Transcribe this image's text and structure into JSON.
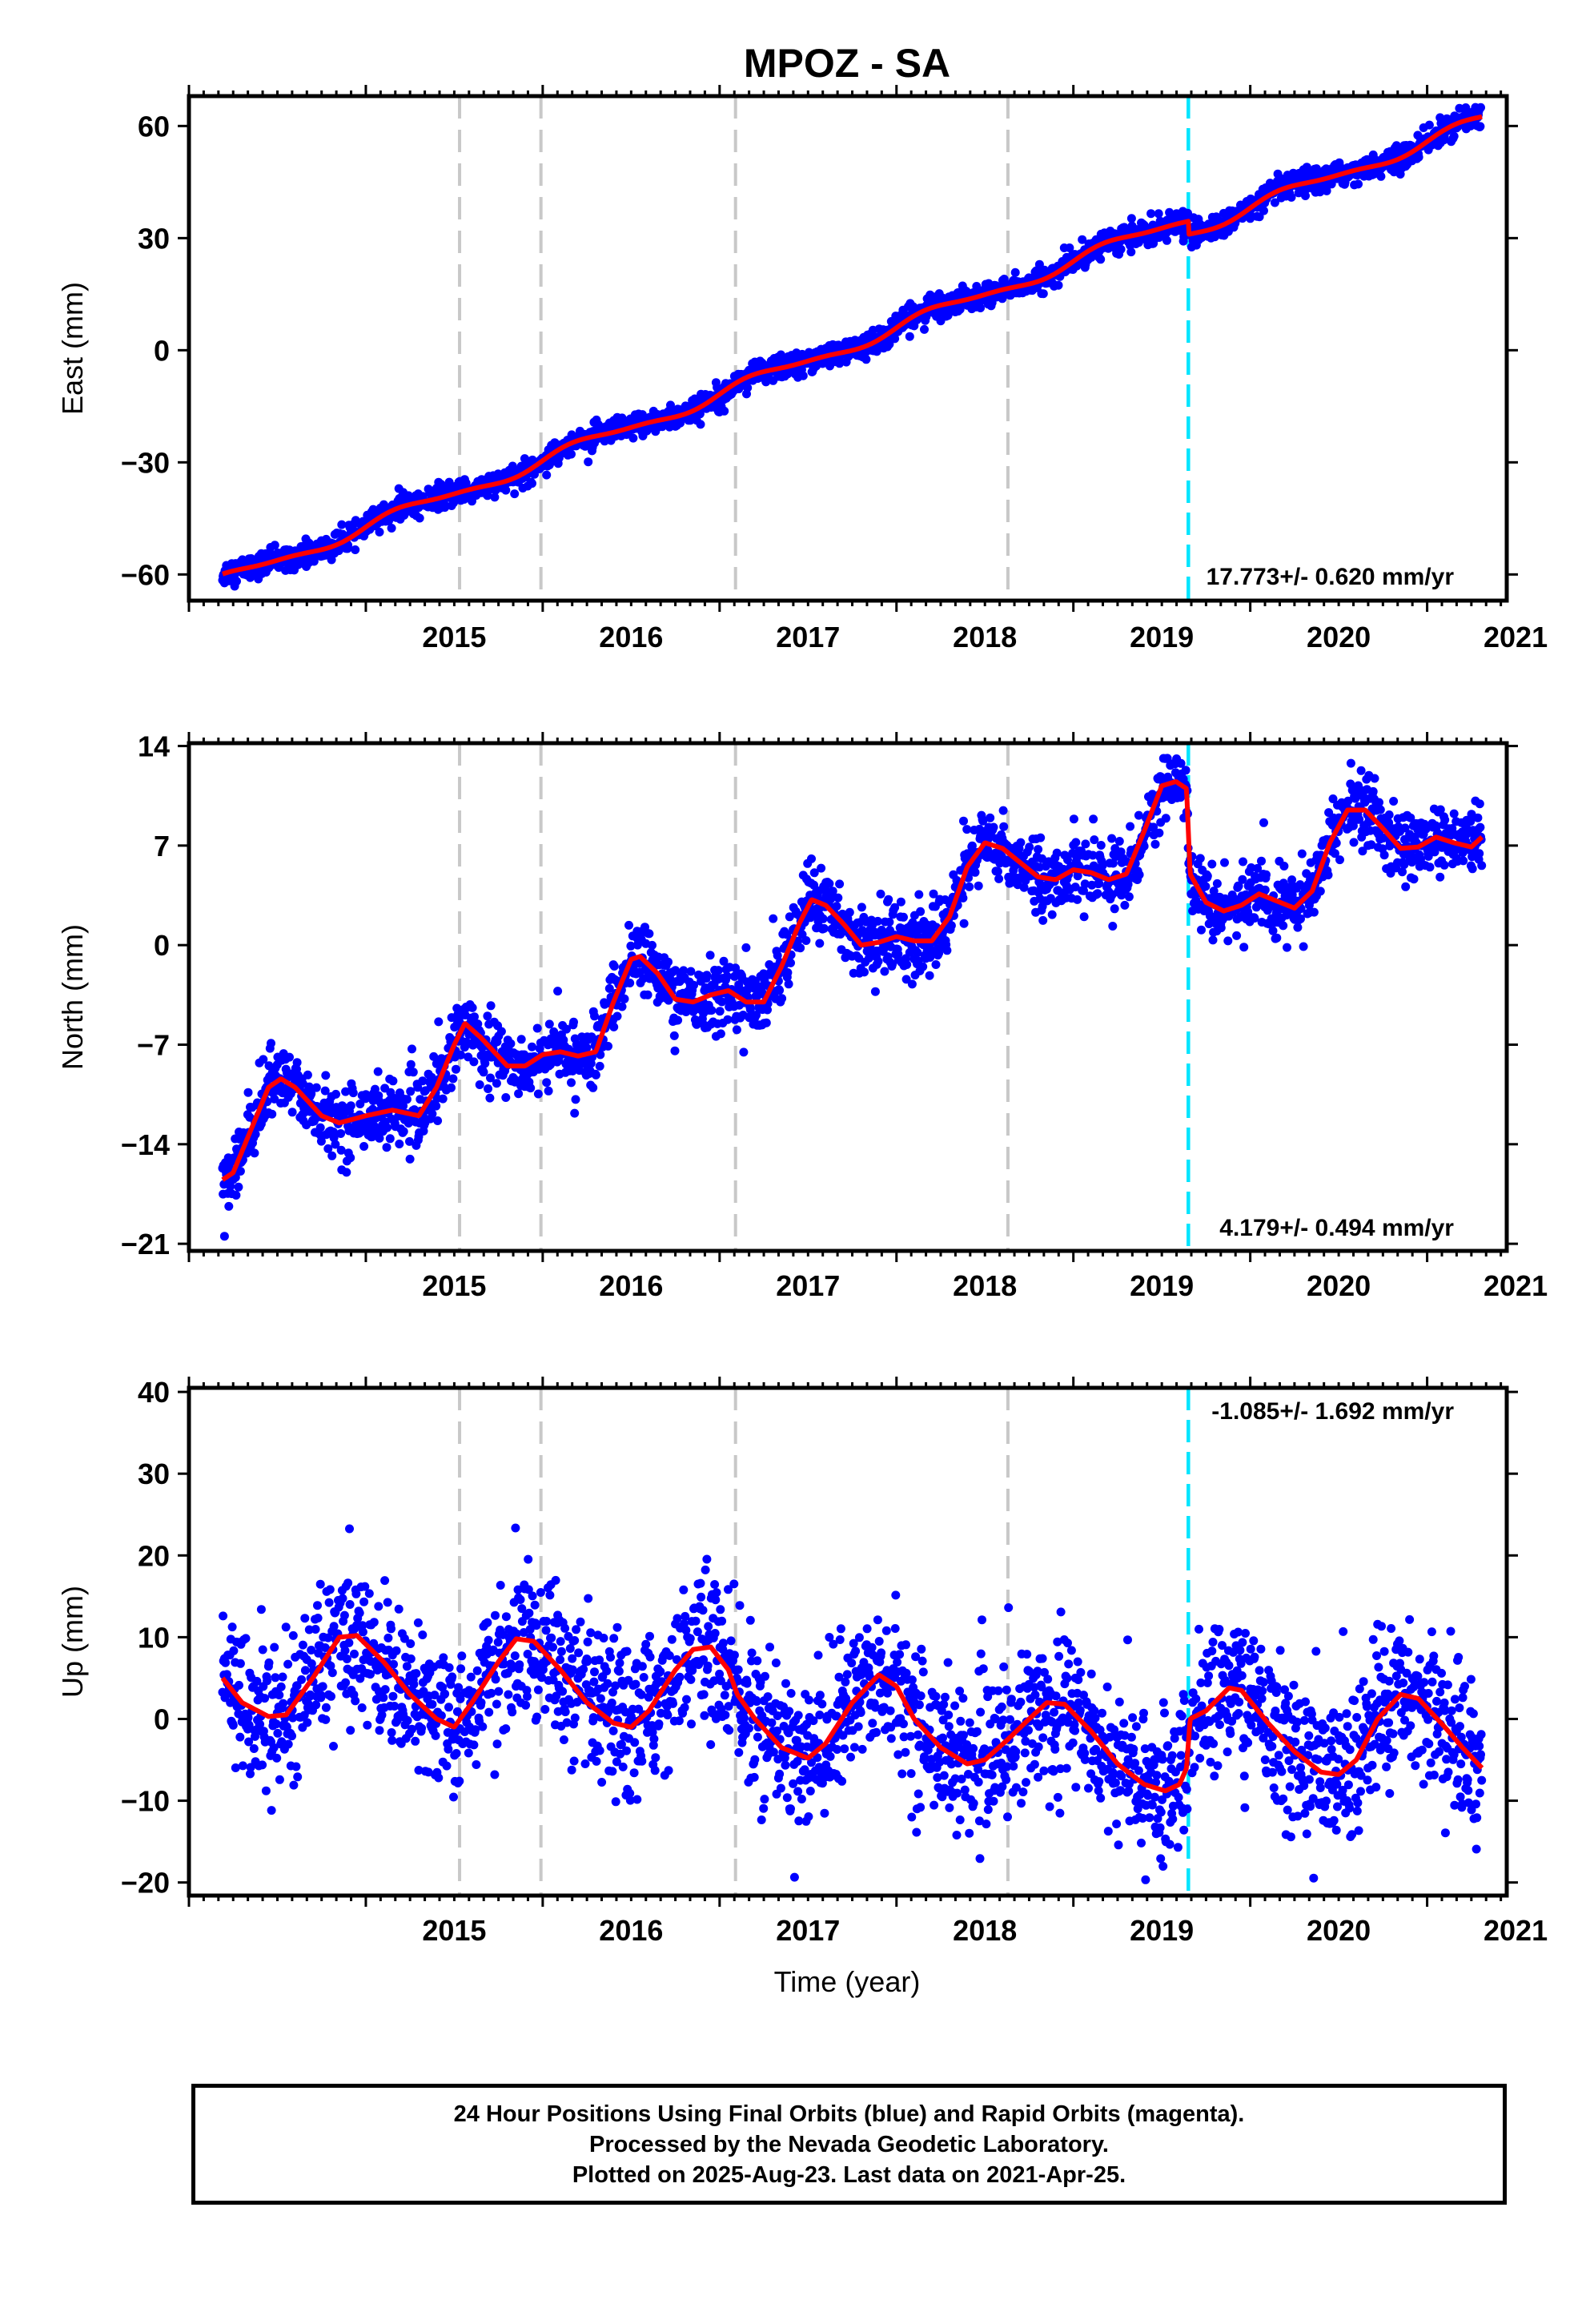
{
  "title": "MPOZ - SA",
  "xlabel": "Time (year)",
  "footer": {
    "line1": "24 Hour Positions Using Final Orbits (blue) and Rapid Orbits (magenta).",
    "line2": "Processed by the Nevada Geodetic Laboratory.",
    "line3": "Plotted on 2025-Aug-23. Last data on 2021-Apr-25."
  },
  "colors": {
    "points": "#0000ff",
    "model": "#ff0000",
    "equipment_change": "#c8c8c8",
    "offset": "#00e5ff"
  },
  "chart_data": [
    {
      "type": "scatter",
      "ylabel": "East (mm)",
      "rate_label": "17.773+/- 0.620 mm/yr",
      "xlim": [
        2014.0,
        2021.45
      ],
      "ylim": [
        -67,
        68
      ],
      "yticks": [
        -60,
        -30,
        0,
        30,
        60
      ],
      "xticks": [
        2015,
        2016,
        2017,
        2018,
        2019,
        2020,
        2021
      ],
      "grey_lines": [
        2015.53,
        2015.99,
        2017.09,
        2018.63
      ],
      "cyan_lines": [
        2019.65
      ],
      "time_span": [
        2014.19,
        2021.31
      ],
      "model": {
        "rate": 17.773,
        "at_2018": 6.0,
        "annual_amp": 1.6,
        "semiannual_amp": 0.5,
        "offset_at_cyan": -3.5
      },
      "scatter_sd": 1.6
    },
    {
      "type": "scatter",
      "ylabel": "North (mm)",
      "rate_label": "4.179+/- 0.494 mm/yr",
      "xlim": [
        2014.0,
        2021.45
      ],
      "ylim": [
        -21.5,
        14.2
      ],
      "yticks": [
        -21,
        -14,
        -7,
        0,
        7,
        14
      ],
      "xticks": [
        2015,
        2016,
        2017,
        2018,
        2019,
        2020,
        2021
      ],
      "grey_lines": [
        2015.53,
        2015.99,
        2017.09,
        2018.63
      ],
      "cyan_lines": [
        2019.65
      ],
      "time_span": [
        2014.19,
        2021.31
      ],
      "model_points": [
        [
          2014.19,
          -16.5
        ],
        [
          2014.25,
          -16.0
        ],
        [
          2014.35,
          -13
        ],
        [
          2014.45,
          -10
        ],
        [
          2014.52,
          -9.4
        ],
        [
          2014.6,
          -10
        ],
        [
          2014.75,
          -12
        ],
        [
          2014.85,
          -12.5
        ],
        [
          2015.0,
          -12
        ],
        [
          2015.15,
          -11.6
        ],
        [
          2015.3,
          -12
        ],
        [
          2015.4,
          -10
        ],
        [
          2015.5,
          -7
        ],
        [
          2015.56,
          -5.5
        ],
        [
          2015.65,
          -6.5
        ],
        [
          2015.8,
          -8.5
        ],
        [
          2015.9,
          -8.5
        ],
        [
          2016.0,
          -7.7
        ],
        [
          2016.1,
          -7.5
        ],
        [
          2016.2,
          -7.8
        ],
        [
          2016.3,
          -7.5
        ],
        [
          2016.4,
          -4
        ],
        [
          2016.5,
          -1
        ],
        [
          2016.55,
          -0.8
        ],
        [
          2016.65,
          -2
        ],
        [
          2016.75,
          -3.8
        ],
        [
          2016.85,
          -4
        ],
        [
          2016.95,
          -3.5
        ],
        [
          2017.05,
          -3.2
        ],
        [
          2017.15,
          -4
        ],
        [
          2017.25,
          -4
        ],
        [
          2017.35,
          -1.5
        ],
        [
          2017.45,
          1.5
        ],
        [
          2017.52,
          3.2
        ],
        [
          2017.6,
          2.8
        ],
        [
          2017.7,
          1.5
        ],
        [
          2017.8,
          0
        ],
        [
          2017.9,
          0.2
        ],
        [
          2018.0,
          0.6
        ],
        [
          2018.1,
          0.3
        ],
        [
          2018.2,
          0.3
        ],
        [
          2018.3,
          2
        ],
        [
          2018.4,
          5.5
        ],
        [
          2018.5,
          7.2
        ],
        [
          2018.6,
          6.8
        ],
        [
          2018.7,
          5.8
        ],
        [
          2018.8,
          4.8
        ],
        [
          2018.9,
          4.6
        ],
        [
          2019.0,
          5.3
        ],
        [
          2019.1,
          5.1
        ],
        [
          2019.2,
          4.6
        ],
        [
          2019.3,
          5
        ],
        [
          2019.4,
          8
        ],
        [
          2019.5,
          11.2
        ],
        [
          2019.58,
          11.5
        ],
        [
          2019.64,
          11
        ],
        [
          2019.66,
          5
        ],
        [
          2019.75,
          3
        ],
        [
          2019.85,
          2.4
        ],
        [
          2019.95,
          2.8
        ],
        [
          2020.05,
          3.6
        ],
        [
          2020.15,
          3.1
        ],
        [
          2020.25,
          2.6
        ],
        [
          2020.35,
          3.8
        ],
        [
          2020.45,
          7.2
        ],
        [
          2020.55,
          9.5
        ],
        [
          2020.65,
          9.5
        ],
        [
          2020.75,
          8.2
        ],
        [
          2020.85,
          6.8
        ],
        [
          2020.95,
          6.9
        ],
        [
          2021.05,
          7.6
        ],
        [
          2021.15,
          7.2
        ],
        [
          2021.25,
          6.9
        ],
        [
          2021.31,
          7.6
        ]
      ],
      "scatter_sd": 1.2
    },
    {
      "type": "scatter",
      "ylabel": "Up (mm)",
      "rate_label": "-1.085+/- 1.692 mm/yr",
      "xlim": [
        2014.0,
        2021.45
      ],
      "ylim": [
        -21.6,
        40.5
      ],
      "yticks": [
        -20,
        -10,
        0,
        10,
        20,
        30,
        40
      ],
      "xticks": [
        2015,
        2016,
        2017,
        2018,
        2019,
        2020,
        2021
      ],
      "grey_lines": [
        2015.53,
        2015.99,
        2017.09,
        2018.63
      ],
      "cyan_lines": [
        2019.65
      ],
      "time_span": [
        2014.19,
        2021.31
      ],
      "model_points": [
        [
          2014.19,
          5
        ],
        [
          2014.3,
          2
        ],
        [
          2014.45,
          0.3
        ],
        [
          2014.55,
          0.5
        ],
        [
          2014.7,
          5
        ],
        [
          2014.85,
          10
        ],
        [
          2014.95,
          10.2
        ],
        [
          2015.1,
          7
        ],
        [
          2015.25,
          3
        ],
        [
          2015.4,
          0
        ],
        [
          2015.5,
          -1
        ],
        [
          2015.6,
          2
        ],
        [
          2015.75,
          7
        ],
        [
          2015.85,
          9.8
        ],
        [
          2015.95,
          9.5
        ],
        [
          2016.1,
          6
        ],
        [
          2016.25,
          2
        ],
        [
          2016.4,
          -0.5
        ],
        [
          2016.5,
          -1
        ],
        [
          2016.6,
          1
        ],
        [
          2016.75,
          6
        ],
        [
          2016.85,
          8.5
        ],
        [
          2016.95,
          8.8
        ],
        [
          2017.05,
          6
        ],
        [
          2017.1,
          3
        ],
        [
          2017.2,
          0
        ],
        [
          2017.35,
          -3.5
        ],
        [
          2017.5,
          -4.8
        ],
        [
          2017.6,
          -3
        ],
        [
          2017.75,
          2
        ],
        [
          2017.9,
          5.4
        ],
        [
          2018.0,
          4
        ],
        [
          2018.1,
          0
        ],
        [
          2018.25,
          -3.5
        ],
        [
          2018.4,
          -5.5
        ],
        [
          2018.5,
          -5
        ],
        [
          2018.63,
          -2.5
        ],
        [
          2018.75,
          0
        ],
        [
          2018.85,
          2
        ],
        [
          2018.95,
          1.8
        ],
        [
          2019.1,
          -1.5
        ],
        [
          2019.25,
          -5.5
        ],
        [
          2019.4,
          -8
        ],
        [
          2019.52,
          -8.8
        ],
        [
          2019.6,
          -8
        ],
        [
          2019.64,
          -6
        ],
        [
          2019.66,
          0
        ],
        [
          2019.75,
          1
        ],
        [
          2019.88,
          3.8
        ],
        [
          2019.95,
          3.5
        ],
        [
          2020.1,
          -0.5
        ],
        [
          2020.25,
          -4
        ],
        [
          2020.4,
          -6.5
        ],
        [
          2020.5,
          -6.8
        ],
        [
          2020.6,
          -5
        ],
        [
          2020.72,
          0
        ],
        [
          2020.85,
          3
        ],
        [
          2020.95,
          2.5
        ],
        [
          2021.1,
          -1
        ],
        [
          2021.2,
          -3.5
        ],
        [
          2021.31,
          -6
        ]
      ],
      "scatter_sd": 4.5
    }
  ]
}
